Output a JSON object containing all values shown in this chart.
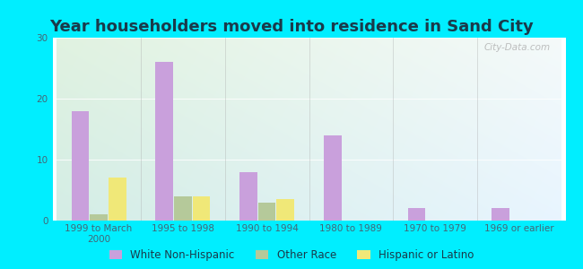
{
  "title": "Year householders moved into residence in Sand City",
  "categories": [
    "1999 to March\n2000",
    "1995 to 1998",
    "1990 to 1994",
    "1980 to 1989",
    "1970 to 1979",
    "1969 or earlier"
  ],
  "series": {
    "White Non-Hispanic": [
      18,
      26,
      8,
      14,
      2,
      2
    ],
    "Other Race": [
      1,
      4,
      3,
      0,
      0,
      0
    ],
    "Hispanic or Latino": [
      7,
      4,
      3.5,
      0,
      0,
      0
    ]
  },
  "colors": {
    "White Non-Hispanic": "#c9a0dc",
    "Other Race": "#b5c99a",
    "Hispanic or Latino": "#f0e878"
  },
  "ylim": [
    0,
    30
  ],
  "yticks": [
    0,
    10,
    20,
    30
  ],
  "bg_outer": "#00eeff",
  "title_fontsize": 13,
  "title_color": "#1a3a4a",
  "legend_fontsize": 8.5,
  "tick_fontsize": 7.5,
  "tick_color": "#446677",
  "bar_width": 0.22
}
